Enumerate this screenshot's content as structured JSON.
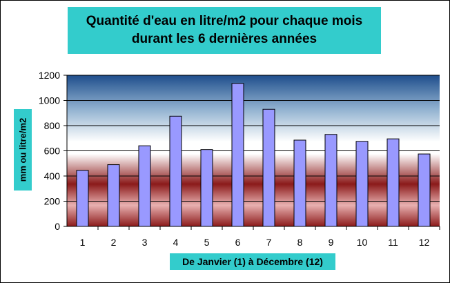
{
  "chart_data": {
    "type": "bar",
    "title": "Quantité d'eau en litre/m2 pour chaque mois\ndurant les 6 dernières années",
    "xlabel": "De Janvier (1) à Décembre (12)",
    "ylabel": "mm ou litre/m2",
    "categories": [
      "1",
      "2",
      "3",
      "4",
      "5",
      "6",
      "7",
      "8",
      "9",
      "10",
      "11",
      "12"
    ],
    "values": [
      445,
      490,
      640,
      875,
      610,
      1135,
      930,
      685,
      730,
      675,
      695,
      575
    ],
    "ylim": [
      0,
      1200
    ],
    "yticks": [
      0,
      200,
      400,
      600,
      800,
      1000,
      1200
    ],
    "grid": true,
    "legend": "none"
  },
  "colors": {
    "bar_fill": "#9999ff",
    "bar_stroke": "#000000",
    "label_box": "#33cccc",
    "plot_top": "#1f4e8c",
    "plot_mid": "#ffffff",
    "plot_band": "#8b1a1a"
  }
}
